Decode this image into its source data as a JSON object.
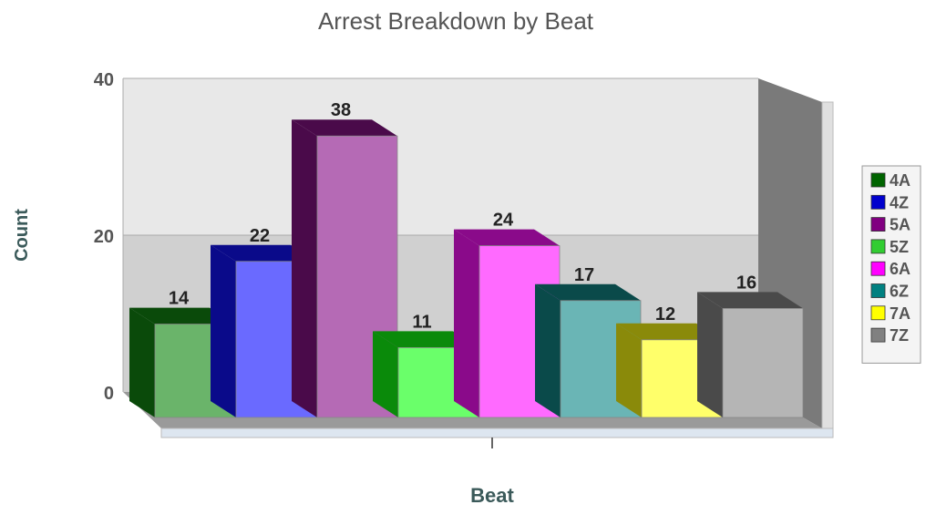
{
  "chart_data": {
    "type": "bar",
    "title": "Arrest Breakdown by Beat",
    "xlabel": "Beat",
    "ylabel": "Count",
    "ylim": [
      0,
      40
    ],
    "yticks": [
      "0",
      "20",
      "40"
    ],
    "grid": true,
    "legend_position": "right",
    "categories": [
      "4A",
      "4Z",
      "5A",
      "5Z",
      "6A",
      "6Z",
      "7A",
      "7Z"
    ],
    "values": [
      14,
      22,
      38,
      11,
      24,
      17,
      12,
      16
    ],
    "data_labels": [
      "14",
      "22",
      "38",
      "11",
      "24",
      "17",
      "12",
      "16"
    ],
    "colors": {
      "front": [
        "#6ab46a",
        "#6a6aff",
        "#b56ab5",
        "#6aff6a",
        "#ff6aff",
        "#6ab5b5",
        "#ffff6a",
        "#b5b5b5"
      ],
      "dark": [
        "#0a4a0a",
        "#0a0a8a",
        "#4a0a4a",
        "#0a8a0a",
        "#8a0a8a",
        "#0a4a4a",
        "#8a8a0a",
        "#4a4a4a"
      ],
      "legend": [
        "#006400",
        "#0000cd",
        "#800080",
        "#32cd32",
        "#ff00ff",
        "#008080",
        "#ffff00",
        "#808080"
      ],
      "title": "#555555",
      "axis_label": "#3b5a5a"
    }
  }
}
